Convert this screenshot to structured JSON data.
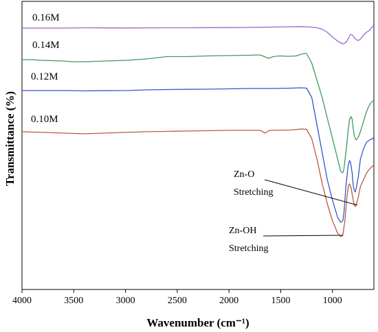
{
  "chart_data": {
    "type": "line",
    "xlabel": "Wavenumber (cm⁻¹)",
    "ylabel": "Transmittance (%)",
    "xlim": [
      4000,
      600
    ],
    "x_reversed": true,
    "y_ticks_shown": false,
    "grid": false,
    "x_ticks": [
      4000,
      3500,
      3000,
      2500,
      2000,
      1500,
      1000
    ],
    "series": [
      {
        "name": "0.16M",
        "color": "#9966cc",
        "points": [
          [
            4000,
            39
          ],
          [
            3800,
            39
          ],
          [
            3600,
            39
          ],
          [
            3400,
            38.5
          ],
          [
            3200,
            38.7
          ],
          [
            3000,
            38.8
          ],
          [
            2800,
            38.6
          ],
          [
            2600,
            38.5
          ],
          [
            2400,
            38.5
          ],
          [
            2200,
            38.3
          ],
          [
            2000,
            38.2
          ],
          [
            1800,
            38
          ],
          [
            1600,
            37.5
          ],
          [
            1400,
            37
          ],
          [
            1300,
            36.8
          ],
          [
            1250,
            37
          ],
          [
            1200,
            37.5
          ],
          [
            1150,
            38.5
          ],
          [
            1100,
            40.5
          ],
          [
            1050,
            45
          ],
          [
            1000,
            52
          ],
          [
            950,
            58
          ],
          [
            900,
            62
          ],
          [
            880,
            61
          ],
          [
            860,
            58
          ],
          [
            840,
            52
          ],
          [
            830,
            49
          ],
          [
            820,
            48
          ],
          [
            800,
            50
          ],
          [
            790,
            53
          ],
          [
            770,
            56
          ],
          [
            750,
            57
          ],
          [
            730,
            55
          ],
          [
            700,
            49
          ],
          [
            680,
            46
          ],
          [
            650,
            43
          ],
          [
            630,
            40
          ],
          [
            610,
            36
          ],
          [
            600,
            36
          ]
        ]
      },
      {
        "name": "0.14M",
        "color": "#3a9b5c",
        "points": [
          [
            4000,
            85
          ],
          [
            3900,
            85
          ],
          [
            3800,
            86
          ],
          [
            3700,
            86.5
          ],
          [
            3600,
            87
          ],
          [
            3500,
            88
          ],
          [
            3400,
            88
          ],
          [
            3300,
            87.5
          ],
          [
            3200,
            87
          ],
          [
            3000,
            86
          ],
          [
            2800,
            84
          ],
          [
            2600,
            80.5
          ],
          [
            2400,
            80.5
          ],
          [
            2200,
            79.5
          ],
          [
            2000,
            79
          ],
          [
            1800,
            78.5
          ],
          [
            1700,
            78
          ],
          [
            1650,
            81
          ],
          [
            1620,
            83
          ],
          [
            1580,
            81
          ],
          [
            1550,
            80
          ],
          [
            1500,
            79.5
          ],
          [
            1450,
            80
          ],
          [
            1400,
            80
          ],
          [
            1350,
            79.5
          ],
          [
            1300,
            77
          ],
          [
            1270,
            76
          ],
          [
            1250,
            76
          ],
          [
            1200,
            90
          ],
          [
            1150,
            115
          ],
          [
            1100,
            140
          ],
          [
            1050,
            170
          ],
          [
            1000,
            200
          ],
          [
            950,
            230
          ],
          [
            920,
            248
          ],
          [
            900,
            250
          ],
          [
            890,
            245
          ],
          [
            870,
            220
          ],
          [
            850,
            190
          ],
          [
            835,
            172
          ],
          [
            820,
            168
          ],
          [
            810,
            172
          ],
          [
            800,
            185
          ],
          [
            790,
            195
          ],
          [
            780,
            200
          ],
          [
            770,
            202
          ],
          [
            750,
            198
          ],
          [
            730,
            190
          ],
          [
            700,
            175
          ],
          [
            670,
            160
          ],
          [
            640,
            150
          ],
          [
            610,
            145
          ],
          [
            600,
            145
          ]
        ]
      },
      {
        "name": "0.12M",
        "color": "#3355cc",
        "points": [
          [
            4000,
            130
          ],
          [
            3800,
            130
          ],
          [
            3600,
            130
          ],
          [
            3400,
            130.5
          ],
          [
            3200,
            130.2
          ],
          [
            3000,
            130
          ],
          [
            2800,
            129
          ],
          [
            2600,
            128.5
          ],
          [
            2400,
            128.2
          ],
          [
            2200,
            128
          ],
          [
            2000,
            127.5
          ],
          [
            1800,
            127
          ],
          [
            1600,
            127
          ],
          [
            1400,
            126.5
          ],
          [
            1300,
            126
          ],
          [
            1250,
            126.5
          ],
          [
            1200,
            140
          ],
          [
            1150,
            180
          ],
          [
            1100,
            220
          ],
          [
            1050,
            260
          ],
          [
            1000,
            290
          ],
          [
            950,
            315
          ],
          [
            920,
            322
          ],
          [
            900,
            320
          ],
          [
            890,
            310
          ],
          [
            870,
            270
          ],
          [
            850,
            240
          ],
          [
            835,
            232
          ],
          [
            825,
            235
          ],
          [
            810,
            250
          ],
          [
            800,
            268
          ],
          [
            790,
            275
          ],
          [
            780,
            278
          ],
          [
            770,
            272
          ],
          [
            750,
            255
          ],
          [
            730,
            230
          ],
          [
            700,
            215
          ],
          [
            670,
            205
          ],
          [
            640,
            202
          ],
          [
            610,
            200
          ],
          [
            600,
            198
          ]
        ]
      },
      {
        "name": "0.10M",
        "color": "#b85a3e",
        "points": [
          [
            4000,
            190
          ],
          [
            3800,
            191
          ],
          [
            3600,
            192
          ],
          [
            3400,
            193
          ],
          [
            3200,
            192
          ],
          [
            3000,
            191
          ],
          [
            2800,
            190
          ],
          [
            2600,
            189.5
          ],
          [
            2400,
            189
          ],
          [
            2200,
            188.5
          ],
          [
            2000,
            188
          ],
          [
            1800,
            188
          ],
          [
            1700,
            188
          ],
          [
            1650,
            192
          ],
          [
            1620,
            189
          ],
          [
            1600,
            188
          ],
          [
            1400,
            187.5
          ],
          [
            1300,
            186
          ],
          [
            1250,
            186.5
          ],
          [
            1200,
            200
          ],
          [
            1150,
            230
          ],
          [
            1100,
            265
          ],
          [
            1050,
            295
          ],
          [
            1000,
            320
          ],
          [
            950,
            338
          ],
          [
            920,
            343
          ],
          [
            900,
            341
          ],
          [
            880,
            320
          ],
          [
            860,
            285
          ],
          [
            845,
            268
          ],
          [
            835,
            266
          ],
          [
            820,
            272
          ],
          [
            805,
            285
          ],
          [
            790,
            297
          ],
          [
            780,
            299
          ],
          [
            770,
            296
          ],
          [
            750,
            285
          ],
          [
            730,
            270
          ],
          [
            700,
            260
          ],
          [
            670,
            250
          ],
          [
            640,
            244
          ],
          [
            610,
            240
          ],
          [
            600,
            238
          ]
        ]
      }
    ],
    "annotations": [
      {
        "line1": "Zn-O",
        "line2": "Stretching",
        "target_x": 770
      },
      {
        "line1": "Zn-OH",
        "line2": "Stretching",
        "target_x": 905
      }
    ]
  }
}
